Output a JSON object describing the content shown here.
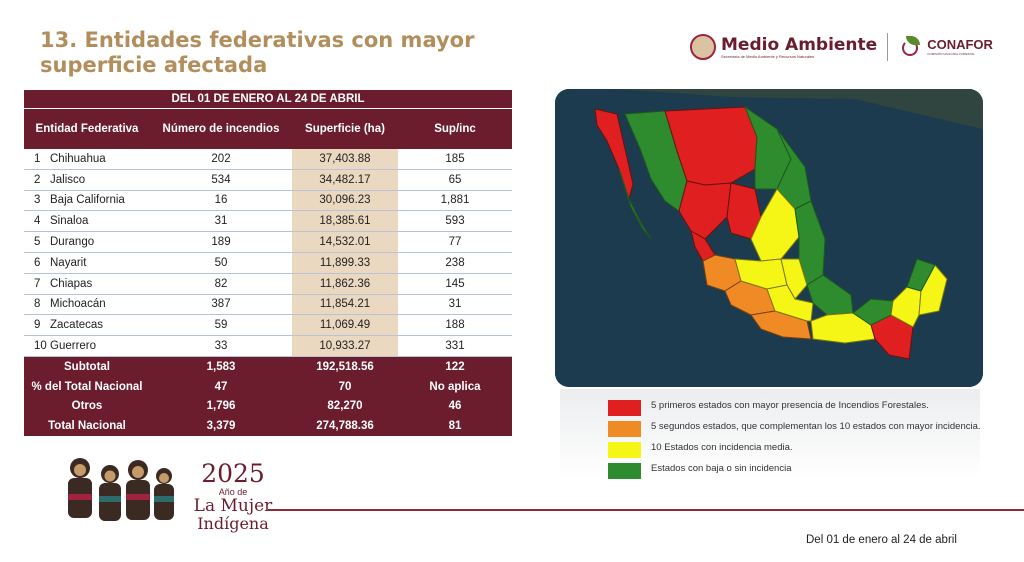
{
  "header": {
    "title": "13. Entidades federativas con mayor superficie afectada",
    "logo_main": "Medio Ambiente",
    "logo_main_sub": "Secretaría de Medio Ambiente y Recursos Naturales",
    "logo_secondary": "CONAFOR",
    "logo_secondary_sub": "COMISIÓN NACIONAL FORESTAL"
  },
  "table": {
    "period": "DEL 01 DE ENERO AL 24 DE ABRIL",
    "columns": [
      "Entidad Federativa",
      "Número de incendios",
      "Superficie (ha)",
      "Sup/inc"
    ],
    "rows": [
      {
        "rank": "1",
        "name": "Chihuahua",
        "fires": "202",
        "area": "37,403.88",
        "ratio": "185"
      },
      {
        "rank": "2",
        "name": "Jalisco",
        "fires": "534",
        "area": "34,482.17",
        "ratio": "65"
      },
      {
        "rank": "3",
        "name": "Baja California",
        "fires": "16",
        "area": "30,096.23",
        "ratio": "1,881"
      },
      {
        "rank": "4",
        "name": "Sinaloa",
        "fires": "31",
        "area": "18,385.61",
        "ratio": "593"
      },
      {
        "rank": "5",
        "name": "Durango",
        "fires": "189",
        "area": "14,532.01",
        "ratio": "77"
      },
      {
        "rank": "6",
        "name": "Nayarit",
        "fires": "50",
        "area": "11,899.33",
        "ratio": "238"
      },
      {
        "rank": "7",
        "name": "Chiapas",
        "fires": "82",
        "area": "11,862.36",
        "ratio": "145"
      },
      {
        "rank": "8",
        "name": "Michoacán",
        "fires": "387",
        "area": "11,854.21",
        "ratio": "31"
      },
      {
        "rank": "9",
        "name": "Zacatecas",
        "fires": "59",
        "area": "11,069.49",
        "ratio": "188"
      },
      {
        "rank": "10",
        "name": "Guerrero",
        "fires": "33",
        "area": "10,933.27",
        "ratio": "331"
      }
    ],
    "summary": [
      {
        "label": "Subtotal",
        "fires": "1,583",
        "area": "192,518.56",
        "ratio": "122"
      },
      {
        "label": "% del Total Nacional",
        "fires": "47",
        "area": "70",
        "ratio": "No aplica"
      },
      {
        "label": "Otros",
        "fires": "1,796",
        "area": "82,270",
        "ratio": "46"
      },
      {
        "label": "Total Nacional",
        "fires": "3,379",
        "area": "274,788.36",
        "ratio": "81"
      }
    ]
  },
  "legend": [
    {
      "color": "#e02020",
      "text": "5 primeros estados con mayor presencia de Incendios Forestales."
    },
    {
      "color": "#f08a24",
      "text": "5 segundos estados, que complementan los 10 estados con mayor incidencia."
    },
    {
      "color": "#f5f516",
      "text": "10 Estados con incidencia media."
    },
    {
      "color": "#2e8b2e",
      "text": "Estados con baja o sin incidencia"
    }
  ],
  "branding": {
    "year": "2025",
    "line1": "Año de",
    "line2": "La Mujer",
    "line3": "Indígena"
  },
  "footer": {
    "date": "Del 01 de enero al 24 de abril"
  },
  "colors": {
    "guinda": "#6b1d2e",
    "gold": "#b38e5d",
    "area_highlight": "#ead8c0"
  }
}
